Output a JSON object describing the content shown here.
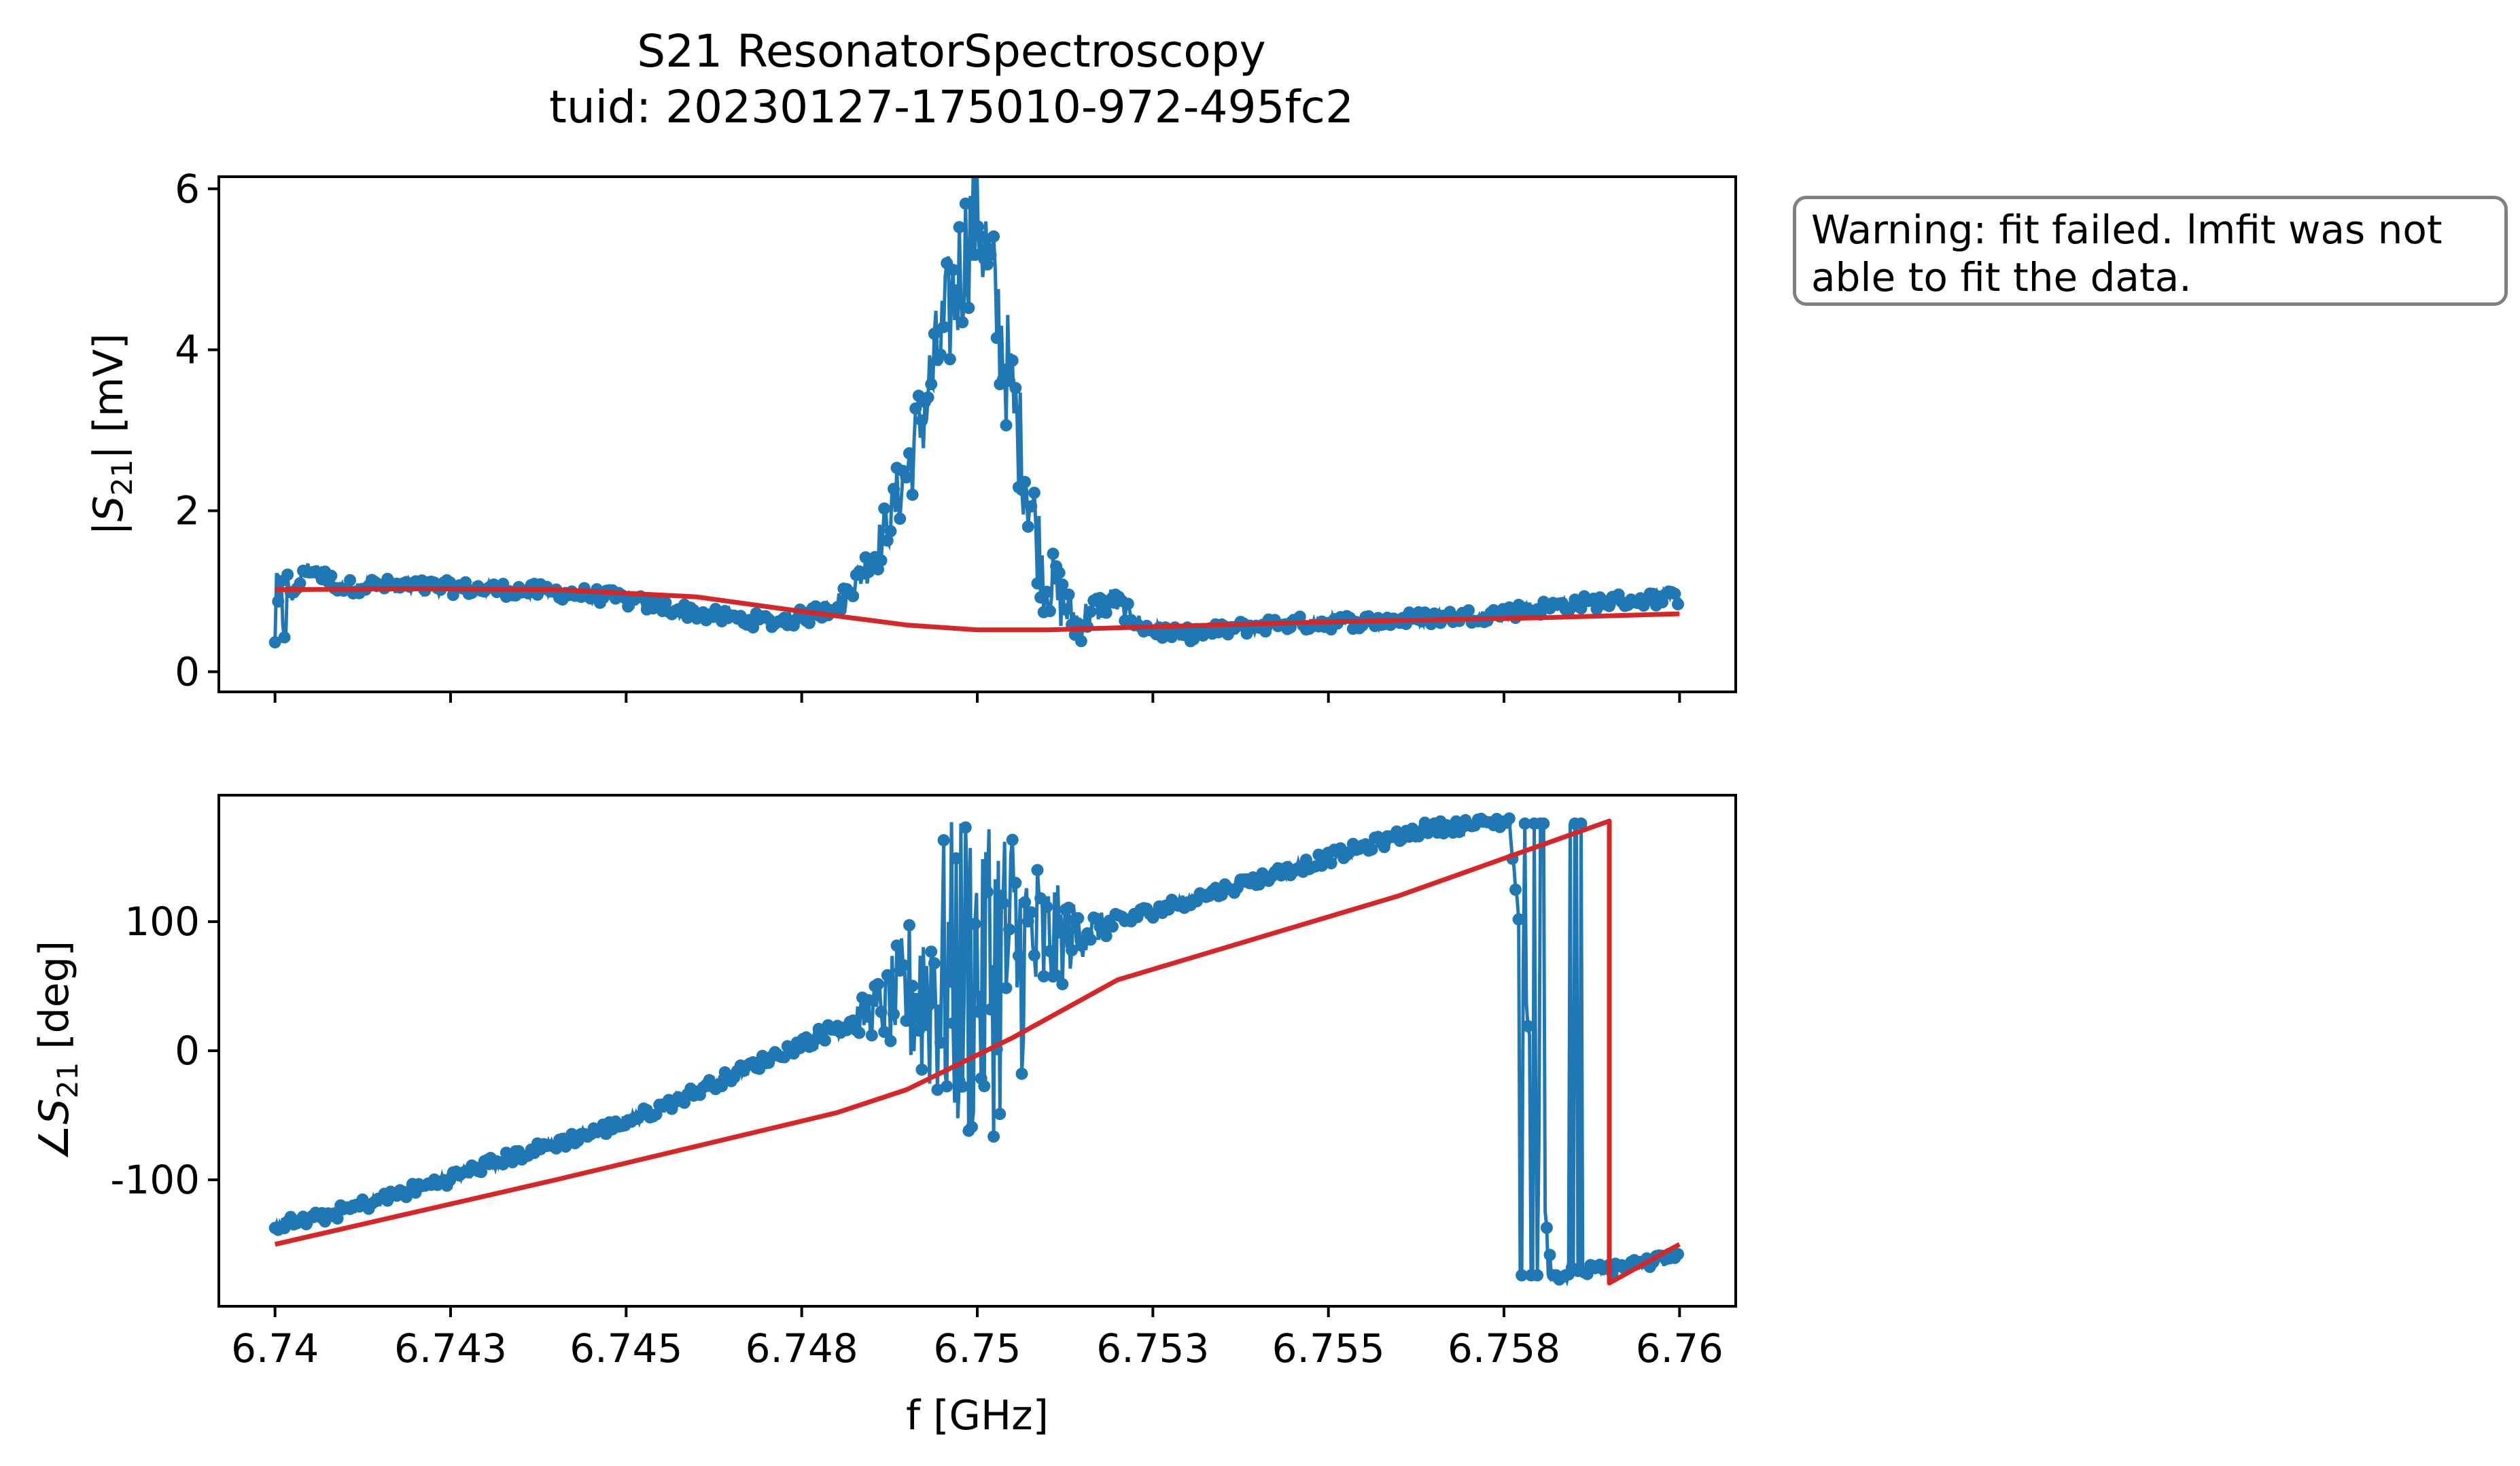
{
  "title": {
    "line1": "S21 ResonatorSpectroscopy",
    "line2": "tuid: 20230127-175010-972-495fc2"
  },
  "warning": {
    "line1": "Warning: fit failed. lmfit was not",
    "line2": "able to fit the data."
  },
  "colors": {
    "data": "#1f77b4",
    "fit": "#d62728",
    "box_edge": "#808080"
  },
  "chart_data": [
    {
      "type": "line",
      "ylabel": "|S21| [mV]",
      "xlabel": "",
      "xlim": [
        6.7392,
        6.7608
      ],
      "ylim": [
        -0.25,
        6.15
      ],
      "yticks": [
        0,
        2,
        4,
        6
      ],
      "ytick_labels": [
        "0",
        "2",
        "4",
        "6"
      ],
      "xticks": [
        6.74,
        6.7425,
        6.745,
        6.7475,
        6.75,
        6.7525,
        6.755,
        6.7575,
        6.76
      ],
      "xtick_labels": [],
      "grid": false,
      "series": [
        {
          "kind": "data-markers",
          "x_range": [
            6.74,
            6.76
          ],
          "y": [
            0.6,
            1.3,
            1.05,
            1.08,
            1.06,
            1.05,
            1.03,
            1.02,
            1.0,
            0.97,
            0.93,
            0.85,
            0.78,
            0.7,
            0.65,
            0.62,
            0.7,
            0.9,
            1.5,
            2.6,
            4.2,
            5.8,
            3.5,
            1.2,
            0.6,
            0.9,
            0.55,
            0.45,
            0.5,
            0.55,
            0.6,
            0.6,
            0.62,
            0.63,
            0.66,
            0.68,
            0.7,
            0.75,
            0.8,
            0.85,
            0.88,
            0.9,
            0.92
          ]
        },
        {
          "kind": "fit",
          "x": [
            6.74,
            6.742,
            6.744,
            6.746,
            6.7475,
            6.749,
            6.75,
            6.751,
            6.7525,
            6.755,
            6.758,
            6.76
          ],
          "y": [
            1.02,
            1.03,
            1.02,
            0.93,
            0.75,
            0.58,
            0.52,
            0.52,
            0.56,
            0.62,
            0.67,
            0.72
          ]
        }
      ]
    },
    {
      "type": "line",
      "ylabel": "∠S21 [deg]",
      "xlabel": "f [GHz]",
      "xlim": [
        6.7392,
        6.7608
      ],
      "ylim": [
        -198,
        198
      ],
      "yticks": [
        -100,
        0,
        100
      ],
      "ytick_labels": [
        "-100",
        "0",
        "100"
      ],
      "xticks": [
        6.74,
        6.7425,
        6.745,
        6.7475,
        6.75,
        6.7525,
        6.755,
        6.7575,
        6.76
      ],
      "xtick_labels": [
        "6.74",
        "6.743",
        "6.745",
        "6.748",
        "6.75",
        "6.753",
        "6.755",
        "6.758",
        "6.76"
      ],
      "grid": false,
      "series": [
        {
          "kind": "data-markers",
          "x_range": [
            6.74,
            6.76
          ],
          "y": [
            -135,
            -130,
            -120,
            -110,
            -100,
            -88,
            -78,
            -68,
            -58,
            -45,
            -30,
            -15,
            0,
            15,
            30,
            45,
            60,
            72,
            82,
            92,
            102,
            112,
            122,
            132,
            142,
            152,
            162,
            172,
            175,
            178,
            -175,
            -170,
            -165,
            -160
          ]
        },
        {
          "kind": "fit",
          "x": [
            6.74,
            6.744,
            6.748,
            6.749,
            6.7505,
            6.752,
            6.756,
            6.759,
            6.759,
            6.76
          ],
          "y": [
            -150,
            -100,
            -48,
            -30,
            10,
            55,
            120,
            178,
            -180,
            -150
          ]
        }
      ]
    }
  ]
}
